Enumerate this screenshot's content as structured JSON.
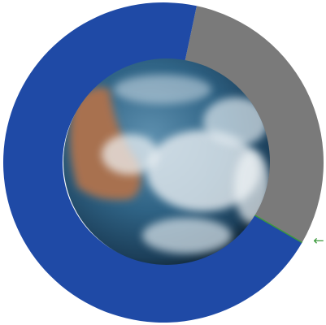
{
  "chart_data": {
    "type": "donut",
    "series": [
      {
        "color": "#7a7a7a",
        "values": [
          30
        ]
      },
      {
        "color": "#1f4aa6",
        "values": [
          70
        ]
      }
    ],
    "annotation": "←",
    "annotation_color": "#3c9a3c"
  }
}
